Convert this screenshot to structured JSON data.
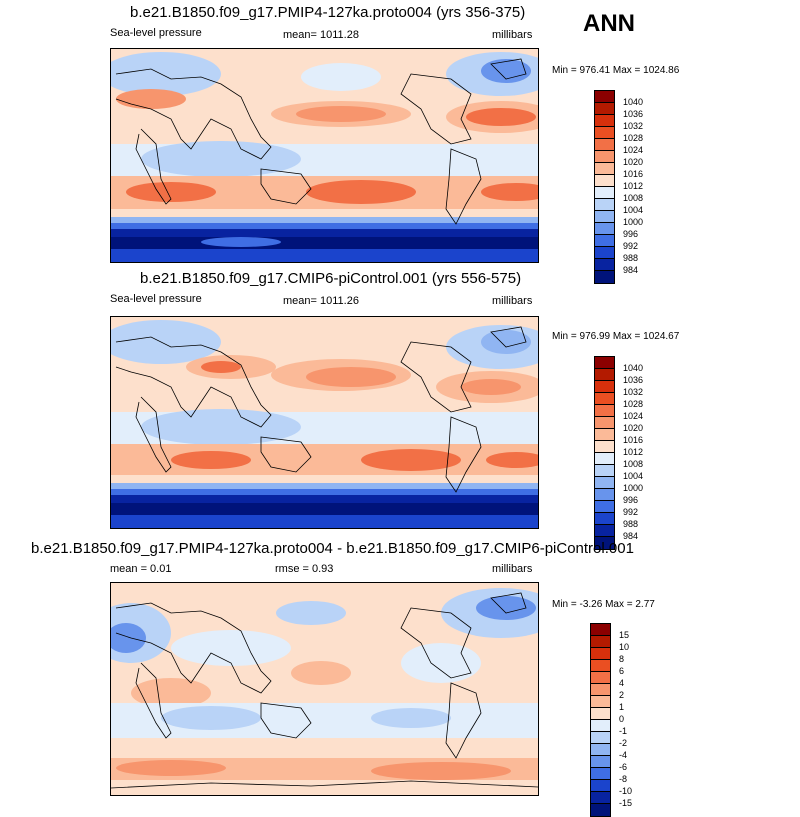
{
  "season": "ANN",
  "panels": [
    {
      "title": "b.e21.B1850.f09_g17.PMIP4-127ka.proto004 (yrs 356-375)",
      "left": "Sea-level pressure",
      "center": "mean= 1011.28",
      "right": "millibars",
      "minmax": "Min = 976.41 Max = 1024.86",
      "colorbar": {
        "labels": [
          "1040",
          "1036",
          "1032",
          "1028",
          "1024",
          "1020",
          "1016",
          "1012",
          "1008",
          "1004",
          "1000",
          "996",
          "992",
          "988",
          "984"
        ],
        "colors": [
          "#8b0000",
          "#b31a00",
          "#d7300c",
          "#ea4f22",
          "#f27046",
          "#f7956d",
          "#fbba98",
          "#fde0cc",
          "#e2eefb",
          "#b9d3f7",
          "#90b5f2",
          "#6894ec",
          "#3f6ee4",
          "#1b44cc",
          "#0823a0",
          "#00137a"
        ]
      }
    },
    {
      "title": "b.e21.B1850.f09_g17.CMIP6-piControl.001 (yrs 556-575)",
      "left": "Sea-level pressure",
      "center": "mean= 1011.26",
      "right": "millibars",
      "minmax": "Min = 976.99 Max = 1024.67",
      "colorbar": {
        "labels": [
          "1040",
          "1036",
          "1032",
          "1028",
          "1024",
          "1020",
          "1016",
          "1012",
          "1008",
          "1004",
          "1000",
          "996",
          "992",
          "988",
          "984"
        ],
        "colors": [
          "#8b0000",
          "#b31a00",
          "#d7300c",
          "#ea4f22",
          "#f27046",
          "#f7956d",
          "#fbba98",
          "#fde0cc",
          "#e2eefb",
          "#b9d3f7",
          "#90b5f2",
          "#6894ec",
          "#3f6ee4",
          "#1b44cc",
          "#0823a0",
          "#00137a"
        ]
      }
    },
    {
      "title": "b.e21.B1850.f09_g17.PMIP4-127ka.proto004 - b.e21.B1850.f09_g17.CMIP6-piControl.001",
      "left": "mean =  0.01",
      "center": "rmse =  0.93",
      "right": "millibars",
      "minmax": "Min =  -3.26 Max =   2.77",
      "colorbar": {
        "labels": [
          "15",
          "10",
          "8",
          "6",
          "4",
          "2",
          "1",
          "0",
          "-1",
          "-2",
          "-4",
          "-6",
          "-8",
          "-10",
          "-15"
        ],
        "colors": [
          "#8b0000",
          "#b31a00",
          "#d7300c",
          "#ea4f22",
          "#f27046",
          "#f7956d",
          "#fbba98",
          "#fde0cc",
          "#e2eefb",
          "#b9d3f7",
          "#90b5f2",
          "#6894ec",
          "#3f6ee4",
          "#1b44cc",
          "#0823a0",
          "#00137a"
        ]
      }
    }
  ]
}
